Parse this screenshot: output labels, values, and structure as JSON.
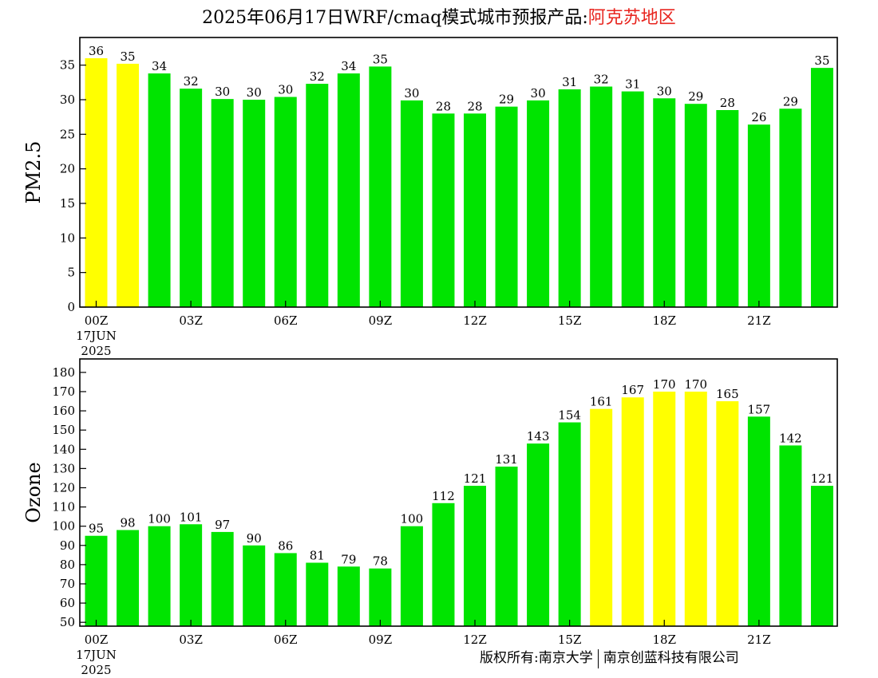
{
  "title": {
    "text": "2025年06月17日WRF/cmaq模式城市预报产品:",
    "region": "阿克苏地区"
  },
  "colors": {
    "good": "#00e400",
    "moderate": "#ffff00",
    "axis": "#000000",
    "region_title": "#e8251f"
  },
  "x_axis": {
    "tick_labels": [
      "00Z",
      "03Z",
      "06Z",
      "09Z",
      "12Z",
      "15Z",
      "18Z",
      "21Z"
    ],
    "tick_hours": [
      0,
      3,
      6,
      9,
      12,
      15,
      18,
      21
    ],
    "date_line1": "17JUN",
    "date_line2": "2025"
  },
  "chart_data": [
    {
      "type": "bar",
      "ylabel": "PM2.5",
      "ylim": [
        0,
        39
      ],
      "yticks": [
        0,
        5,
        10,
        15,
        20,
        25,
        30,
        35
      ],
      "hours": [
        0,
        1,
        2,
        3,
        4,
        5,
        6,
        7,
        8,
        9,
        10,
        11,
        12,
        13,
        14,
        15,
        16,
        17,
        18,
        19,
        20,
        21,
        22,
        23
      ],
      "values": [
        36,
        35,
        34,
        32,
        30,
        30,
        30,
        32,
        34,
        35,
        30,
        28,
        28,
        29,
        30,
        31,
        32,
        31,
        30,
        29,
        28,
        26,
        29,
        35
      ],
      "display_values": [
        36,
        35.2,
        33.8,
        31.6,
        30.1,
        30.0,
        30.4,
        32.3,
        33.8,
        34.8,
        29.9,
        28.0,
        28.0,
        29.0,
        29.9,
        31.5,
        31.9,
        31.2,
        30.2,
        29.4,
        28.5,
        26.4,
        28.7,
        34.6
      ],
      "levels": [
        "moderate",
        "moderate",
        "good",
        "good",
        "good",
        "good",
        "good",
        "good",
        "good",
        "good",
        "good",
        "good",
        "good",
        "good",
        "good",
        "good",
        "good",
        "good",
        "good",
        "good",
        "good",
        "good",
        "good",
        "good"
      ]
    },
    {
      "type": "bar",
      "ylabel": "Ozone",
      "ylim": [
        48,
        187
      ],
      "yticks": [
        50,
        60,
        70,
        80,
        90,
        100,
        110,
        120,
        130,
        140,
        150,
        160,
        170,
        180
      ],
      "hours": [
        0,
        1,
        2,
        3,
        4,
        5,
        6,
        7,
        8,
        9,
        10,
        11,
        12,
        13,
        14,
        15,
        16,
        17,
        18,
        19,
        20,
        21,
        22,
        23
      ],
      "values": [
        95,
        98,
        100,
        101,
        97,
        90,
        86,
        81,
        79,
        78,
        100,
        112,
        121,
        131,
        143,
        154,
        161,
        167,
        170,
        170,
        165,
        157,
        142,
        121
      ],
      "levels": [
        "good",
        "good",
        "good",
        "good",
        "good",
        "good",
        "good",
        "good",
        "good",
        "good",
        "good",
        "good",
        "good",
        "good",
        "good",
        "good",
        "moderate",
        "moderate",
        "moderate",
        "moderate",
        "moderate",
        "good",
        "good",
        "good"
      ]
    }
  ],
  "footer": {
    "copyright_left": "版权所有:南京大学",
    "copyright_right": "南京创蓝科技有限公司"
  }
}
